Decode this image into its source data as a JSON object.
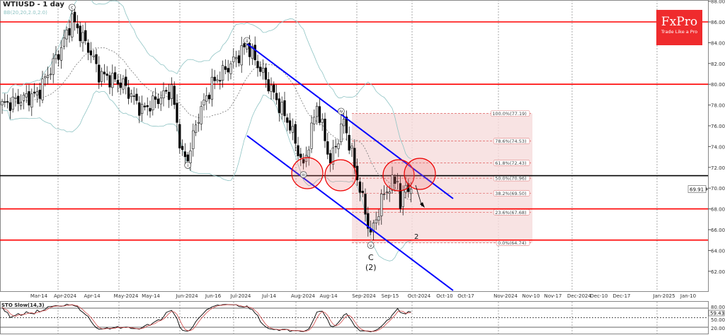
{
  "header": {
    "title": "WTIUSD - 1 day",
    "indicator": "BB(20,20,2.0,2.0)"
  },
  "logo": {
    "brand": "FxPro",
    "tagline": "Trade Like a Pro",
    "color": "#ef2b2d"
  },
  "chart_data": {
    "type": "candlestick",
    "symbol": "WTIUSD",
    "timeframe": "1 day",
    "ylim": [
      60.5,
      88
    ],
    "y_ticks": [
      "88.00",
      "86.00",
      "84.00",
      "82.00",
      "80.00",
      "78.00",
      "76.00",
      "74.00",
      "72.00",
      "70.00",
      "68.00",
      "66.00",
      "64.00",
      "62.00"
    ],
    "current_price": "69.91",
    "x_ticks": [
      "Mar-14",
      "Apr-2024",
      "Apr-14",
      "May-2024",
      "May-14",
      "Jun-2024",
      "Jun-16",
      "Jul-2024",
      "Jul-14",
      "Aug-2024",
      "Aug-14",
      "Sep-2024",
      "Sep-15",
      "Oct-2024",
      "Oct-10",
      "Oct-17",
      "Nov-2024",
      "Nov-10",
      "Nov-17",
      "Dec-2024",
      "Dec-10",
      "Dec-17",
      "Jan-2025",
      "Jan-10"
    ],
    "price_path_by_bar": [
      [
        0,
        78.0
      ],
      [
        13,
        79.0
      ],
      [
        22,
        83.5
      ],
      [
        26,
        86.3
      ],
      [
        33,
        83.0
      ],
      [
        36,
        81.0
      ],
      [
        45,
        80.0
      ],
      [
        52,
        77.5
      ],
      [
        63,
        79.5
      ],
      [
        67,
        73.0
      ],
      [
        69,
        72.9
      ],
      [
        73,
        77.0
      ],
      [
        78,
        80.0
      ],
      [
        87,
        82.5
      ],
      [
        91,
        83.8
      ],
      [
        99,
        80.0
      ],
      [
        107,
        76.0
      ],
      [
        112,
        72.0
      ],
      [
        117,
        78.0
      ],
      [
        122,
        72.5
      ],
      [
        127,
        76.5
      ],
      [
        132,
        71.0
      ],
      [
        137,
        65.5
      ],
      [
        142,
        69.5
      ],
      [
        147,
        71.0
      ],
      [
        148,
        68.0
      ],
      [
        150,
        70.5
      ],
      [
        152,
        69.91
      ]
    ],
    "horizontal_levels": [
      {
        "price": 86.0,
        "color": "#ff0000"
      },
      {
        "price": 80.0,
        "color": "#ff0000"
      },
      {
        "price": 71.2,
        "color": "#000000"
      },
      {
        "price": 68.0,
        "color": "#ff0000"
      },
      {
        "price": 65.0,
        "color": "#ff0000"
      }
    ],
    "fibonacci": [
      {
        "label": "100.0%(77.19)",
        "price": 77.19
      },
      {
        "label": "78.6%(74.53)",
        "price": 74.53
      },
      {
        "label": "61.8%(72.43)",
        "price": 72.43
      },
      {
        "label": "50.0%(70.96)",
        "price": 70.96
      },
      {
        "label": "38.2%(69.50)",
        "price": 69.5
      },
      {
        "label": "23.6%(67.68)",
        "price": 67.68
      },
      {
        "label": "0.0%(64.74)",
        "price": 64.74
      }
    ],
    "wave_labels": [
      {
        "text": "c",
        "bar": 26,
        "price": 87.4
      },
      {
        "text": "i",
        "bar": 69,
        "price": 72.2
      },
      {
        "text": "ii",
        "bar": 91,
        "price": 84.2
      },
      {
        "text": "iii",
        "bar": 112,
        "price": 71.3
      },
      {
        "text": "iv",
        "bar": 126,
        "price": 77.4
      },
      {
        "text": "v",
        "bar": 137,
        "price": 64.5
      }
    ],
    "text_labels": {
      "wave_C": "C",
      "wave_2_paren": "(2)",
      "wave_2": "2"
    },
    "channel_color": "#0000ff",
    "oscillator": {
      "name": "STO Slow(14,3)",
      "levels": [
        "80.00",
        "50.00",
        "20.00"
      ],
      "current": "59.43"
    }
  }
}
